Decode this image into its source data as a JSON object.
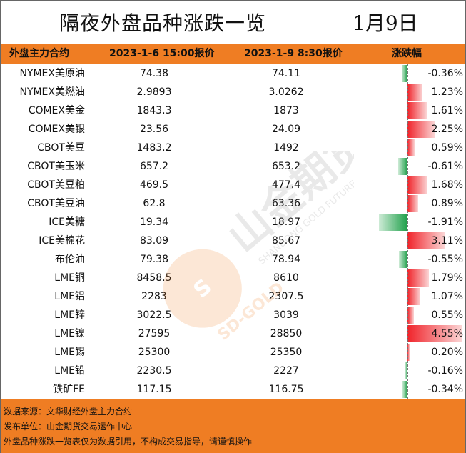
{
  "header": {
    "title": "隔夜外盘品种涨跌一览",
    "date": "1月9日"
  },
  "columns": {
    "name": "外盘主力合约",
    "price1": "2023-1-6 15:00报价",
    "price2": "2023-1-9 8:30报价",
    "change": "涨跌幅"
  },
  "chart_data": {
    "type": "table",
    "rows": [
      {
        "name": "NYMEX美原油",
        "price1": "74.38",
        "price2": "74.11",
        "change": -0.36,
        "change_label": "-0.36%"
      },
      {
        "name": "NYMEX美燃油",
        "price1": "2.9893",
        "price2": "3.0262",
        "change": 1.23,
        "change_label": "1.23%"
      },
      {
        "name": "COMEX美金",
        "price1": "1843.3",
        "price2": "1873",
        "change": 1.61,
        "change_label": "1.61%"
      },
      {
        "name": "COMEX美银",
        "price1": "23.56",
        "price2": "24.09",
        "change": 2.25,
        "change_label": "2.25%"
      },
      {
        "name": "CBOT美豆",
        "price1": "1483.2",
        "price2": "1492",
        "change": 0.59,
        "change_label": "0.59%"
      },
      {
        "name": "CBOT美玉米",
        "price1": "657.2",
        "price2": "653.2",
        "change": -0.61,
        "change_label": "-0.61%"
      },
      {
        "name": "CBOT美豆粕",
        "price1": "469.5",
        "price2": "477.4",
        "change": 1.68,
        "change_label": "1.68%"
      },
      {
        "name": "CBOT美豆油",
        "price1": "62.8",
        "price2": "63.36",
        "change": 0.89,
        "change_label": "0.89%"
      },
      {
        "name": "ICE美糖",
        "price1": "19.34",
        "price2": "18.97",
        "change": -1.91,
        "change_label": "-1.91%"
      },
      {
        "name": "ICE美棉花",
        "price1": "83.09",
        "price2": "85.67",
        "change": 3.11,
        "change_label": "3.11%"
      },
      {
        "name": "布伦油",
        "price1": "79.38",
        "price2": "78.94",
        "change": -0.55,
        "change_label": "-0.55%"
      },
      {
        "name": "LME铜",
        "price1": "8458.5",
        "price2": "8610",
        "change": 1.79,
        "change_label": "1.79%"
      },
      {
        "name": "LME铝",
        "price1": "2283",
        "price2": "2307.5",
        "change": 1.07,
        "change_label": "1.07%"
      },
      {
        "name": "LME锌",
        "price1": "3022.5",
        "price2": "3039",
        "change": 0.55,
        "change_label": "0.55%"
      },
      {
        "name": "LME镍",
        "price1": "27595",
        "price2": "28850",
        "change": 4.55,
        "change_label": "4.55%"
      },
      {
        "name": "LME锡",
        "price1": "25300",
        "price2": "25350",
        "change": 0.2,
        "change_label": "0.20%"
      },
      {
        "name": "LME铅",
        "price1": "2230.5",
        "price2": "2227",
        "change": -0.16,
        "change_label": "-0.16%"
      },
      {
        "name": "铁矿FE",
        "price1": "117.15",
        "price2": "116.75",
        "change": -0.34,
        "change_label": "-0.34%"
      }
    ],
    "bar_range": [
      -1.91,
      4.55
    ],
    "colors": {
      "positive": "#f0232a",
      "negative": "#1fa04a"
    }
  },
  "watermark": {
    "text_cn": "山金期货",
    "text_en": "SHANDONG GOLD FUTURES",
    "logo_text": "SD-GOLD"
  },
  "footer": {
    "line1": "数据来源：文华财经外盘主力合约",
    "line2": "发布单位：山金期货交易运作中心",
    "line3": "外盘品种涨跌一览表仅为数据引用，不构成交易指导，请谨慎操作"
  },
  "colors": {
    "header_bg": "#ef7d23",
    "footer_bg": "#ef7d23"
  }
}
